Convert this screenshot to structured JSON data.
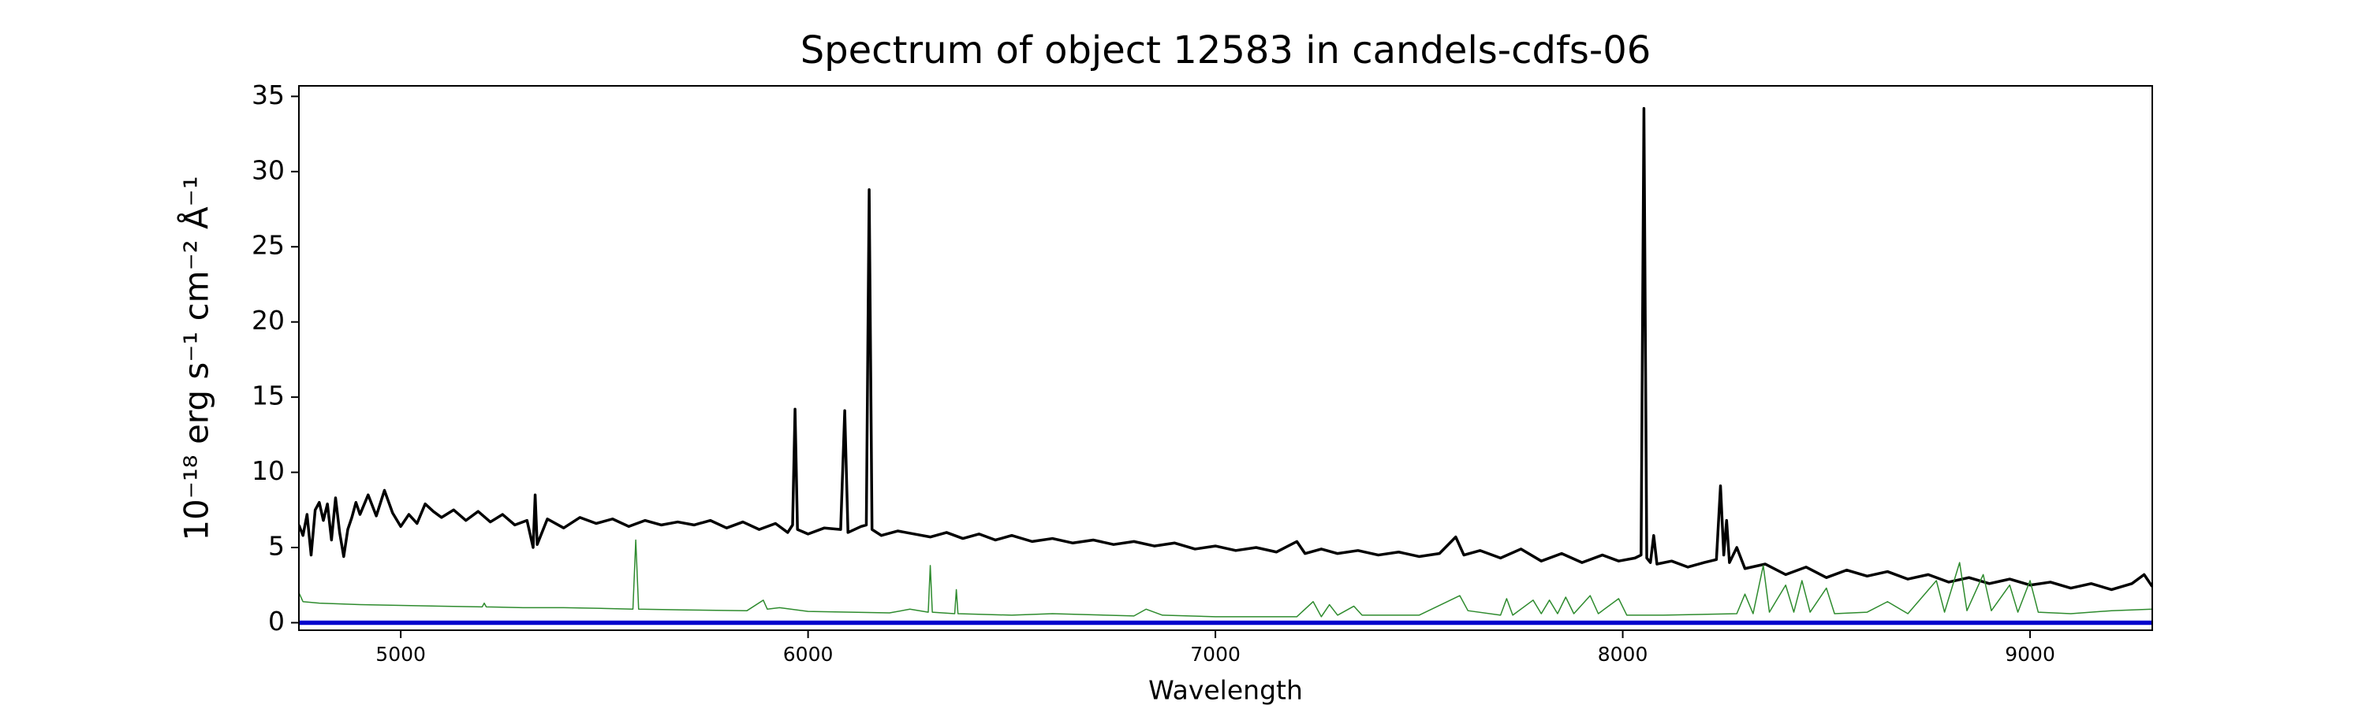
{
  "chart_data": {
    "type": "line",
    "title": "Spectrum of object 12583 in candels-cdfs-06",
    "x_label": "Wavelength",
    "y_label": "10⁻¹⁸ erg s⁻¹ cm⁻² Å⁻¹",
    "xlim": [
      4750,
      9300
    ],
    "xticks": [
      5000,
      6000,
      7000,
      8000,
      9000
    ],
    "ylim": [
      -0.5,
      35.7
    ],
    "yticks": [
      0,
      5,
      10,
      15,
      20,
      25,
      30,
      35
    ],
    "grid": false,
    "series": [
      {
        "color": "#000000",
        "x": [
          4750,
          4760,
          4770,
          4780,
          4790,
          4800,
          4810,
          4820,
          4830,
          4840,
          4850,
          4860,
          4870,
          4880,
          4890,
          4900,
          4920,
          4940,
          4960,
          4980,
          5000,
          5020,
          5040,
          5060,
          5080,
          5100,
          5130,
          5160,
          5190,
          5220,
          5250,
          5280,
          5310,
          5325,
          5330,
          5335,
          5360,
          5400,
          5440,
          5480,
          5520,
          5560,
          5600,
          5640,
          5680,
          5720,
          5760,
          5800,
          5840,
          5880,
          5920,
          5950,
          5962,
          5968,
          5974,
          6000,
          6040,
          6080,
          6090,
          6098,
          6130,
          6143,
          6150,
          6157,
          6180,
          6220,
          6260,
          6300,
          6340,
          6380,
          6420,
          6460,
          6500,
          6550,
          6600,
          6650,
          6700,
          6750,
          6800,
          6850,
          6900,
          6950,
          7000,
          7050,
          7100,
          7150,
          7200,
          7220,
          7260,
          7300,
          7350,
          7400,
          7450,
          7500,
          7550,
          7590,
          7610,
          7650,
          7700,
          7750,
          7800,
          7850,
          7900,
          7950,
          7990,
          8030,
          8045,
          8052,
          8059,
          8068,
          8076,
          8084,
          8120,
          8160,
          8200,
          8230,
          8240,
          8248,
          8255,
          8262,
          8280,
          8300,
          8350,
          8400,
          8450,
          8500,
          8550,
          8600,
          8650,
          8700,
          8750,
          8800,
          8850,
          8900,
          8950,
          9000,
          9050,
          9100,
          9150,
          9200,
          9250,
          9280,
          9300
        ],
        "values": [
          6.5,
          5.8,
          7.2,
          4.5,
          7.5,
          8.0,
          6.8,
          7.9,
          5.5,
          8.3,
          6.0,
          4.4,
          6.2,
          7.0,
          8.0,
          7.2,
          8.5,
          7.1,
          8.8,
          7.3,
          6.4,
          7.2,
          6.6,
          7.9,
          7.4,
          7.0,
          7.5,
          6.8,
          7.4,
          6.7,
          7.2,
          6.5,
          6.8,
          5.0,
          8.5,
          5.2,
          6.9,
          6.3,
          7.0,
          6.6,
          6.9,
          6.4,
          6.8,
          6.5,
          6.7,
          6.5,
          6.8,
          6.3,
          6.7,
          6.2,
          6.6,
          6.0,
          6.5,
          14.2,
          6.2,
          5.9,
          6.3,
          6.2,
          14.1,
          6.0,
          6.4,
          6.5,
          28.8,
          6.2,
          5.8,
          6.1,
          5.9,
          5.7,
          6.0,
          5.6,
          5.9,
          5.5,
          5.8,
          5.4,
          5.6,
          5.3,
          5.5,
          5.2,
          5.4,
          5.1,
          5.3,
          4.9,
          5.1,
          4.8,
          5.0,
          4.7,
          5.4,
          4.6,
          4.9,
          4.6,
          4.8,
          4.5,
          4.7,
          4.4,
          4.6,
          5.7,
          4.5,
          4.8,
          4.3,
          4.9,
          4.1,
          4.6,
          4.0,
          4.5,
          4.1,
          4.3,
          4.5,
          34.2,
          4.3,
          4.0,
          5.8,
          3.9,
          4.1,
          3.7,
          4.0,
          4.2,
          9.1,
          4.5,
          6.8,
          4.0,
          5.0,
          3.6,
          3.9,
          3.2,
          3.7,
          3.0,
          3.5,
          3.1,
          3.4,
          2.9,
          3.2,
          2.7,
          3.0,
          2.6,
          2.9,
          2.5,
          2.7,
          2.3,
          2.6,
          2.2,
          2.6,
          3.2,
          2.4
        ]
      },
      {
        "color": "#2e8b2e",
        "x": [
          4750,
          4760,
          4800,
          4900,
          5000,
          5100,
          5200,
          5205,
          5210,
          5300,
          5400,
          5500,
          5570,
          5577,
          5584,
          5700,
          5850,
          5890,
          5900,
          5930,
          6000,
          6200,
          6250,
          6295,
          6300,
          6305,
          6360,
          6364,
          6368,
          6500,
          6600,
          6800,
          6830,
          6870,
          7000,
          7200,
          7240,
          7260,
          7280,
          7300,
          7340,
          7360,
          7500,
          7600,
          7620,
          7700,
          7715,
          7730,
          7780,
          7800,
          7820,
          7840,
          7860,
          7880,
          7920,
          7940,
          7990,
          8010,
          8100,
          8280,
          8300,
          8320,
          8345,
          8360,
          8400,
          8420,
          8440,
          8460,
          8500,
          8520,
          8600,
          8650,
          8700,
          8770,
          8790,
          8827,
          8845,
          8885,
          8905,
          8950,
          8970,
          9000,
          9020,
          9100,
          9200,
          9300
        ],
        "values": [
          2.0,
          1.4,
          1.3,
          1.2,
          1.15,
          1.1,
          1.05,
          1.3,
          1.05,
          1.0,
          1.0,
          0.95,
          0.9,
          5.5,
          0.9,
          0.85,
          0.8,
          1.5,
          0.9,
          1.0,
          0.75,
          0.65,
          0.9,
          0.7,
          3.8,
          0.7,
          0.6,
          2.2,
          0.6,
          0.5,
          0.6,
          0.45,
          0.9,
          0.5,
          0.4,
          0.4,
          1.4,
          0.4,
          1.2,
          0.5,
          1.1,
          0.5,
          0.5,
          1.8,
          0.8,
          0.5,
          1.6,
          0.5,
          1.5,
          0.6,
          1.5,
          0.6,
          1.7,
          0.6,
          1.8,
          0.6,
          1.6,
          0.5,
          0.5,
          0.6,
          1.9,
          0.6,
          3.8,
          0.7,
          2.5,
          0.7,
          2.8,
          0.7,
          2.3,
          0.6,
          0.7,
          1.4,
          0.6,
          2.8,
          0.7,
          4.0,
          0.8,
          3.2,
          0.8,
          2.5,
          0.7,
          2.8,
          0.7,
          0.6,
          0.8,
          0.9
        ]
      },
      {
        "color": "#0000cc",
        "x": [
          4750,
          9300
        ],
        "values": [
          0,
          0
        ]
      }
    ]
  }
}
